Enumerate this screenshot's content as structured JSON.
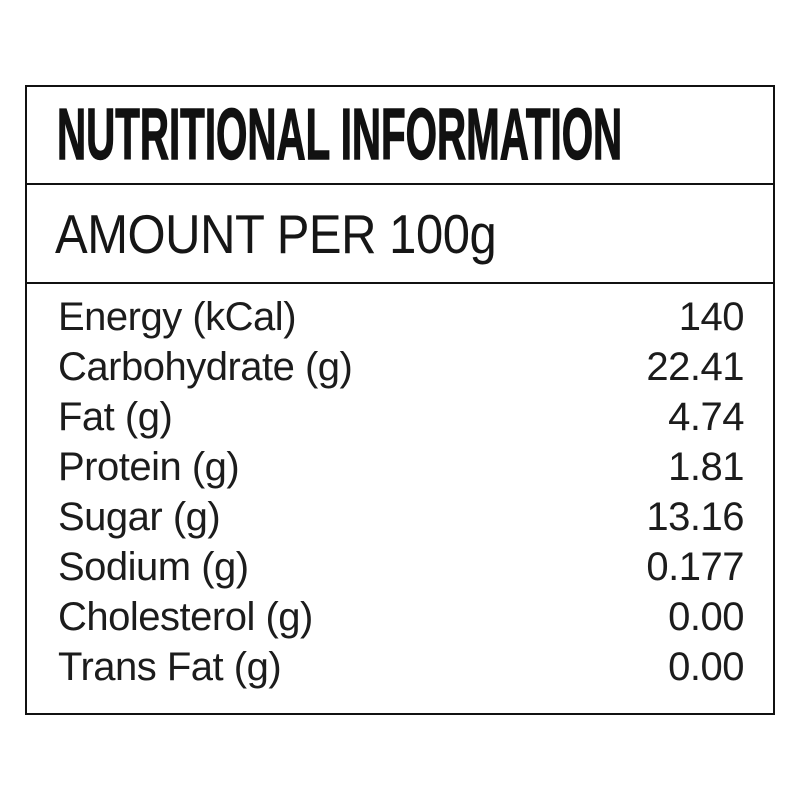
{
  "label": {
    "title": "NUTRITIONAL INFORMATION",
    "subtitle": "AMOUNT PER 100g",
    "rows": [
      {
        "name": "Energy (kCal)",
        "value": "140"
      },
      {
        "name": "Carbohydrate (g)",
        "value": "22.41"
      },
      {
        "name": "Fat (g)",
        "value": "4.74"
      },
      {
        "name": "Protein (g)",
        "value": "1.81"
      },
      {
        "name": "Sugar (g)",
        "value": "13.16"
      },
      {
        "name": "Sodium (g)",
        "value": "0.177"
      },
      {
        "name": "Cholesterol (g)",
        "value": "0.00"
      },
      {
        "name": "Trans Fat (g)",
        "value": "0.00"
      }
    ],
    "colors": {
      "border": "#111111",
      "text": "#1c1c1c",
      "background": "#ffffff"
    }
  }
}
